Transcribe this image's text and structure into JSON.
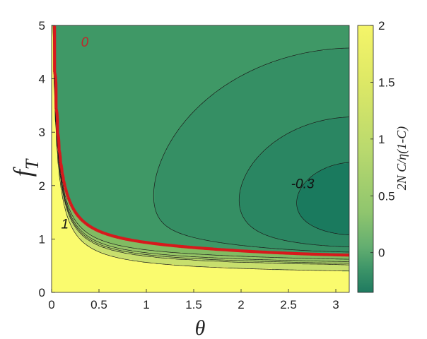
{
  "chart_data": {
    "type": "heatmap",
    "subtype": "filled-contour",
    "xlabel": "θ",
    "ylabel_main": "f",
    "ylabel_sub": "T",
    "xlim": [
      0,
      3.14159
    ],
    "ylim": [
      0,
      5
    ],
    "x_ticks": [
      "0",
      "0.5",
      "1",
      "1.5",
      "2",
      "2.5",
      "3"
    ],
    "x_tick_values": [
      0,
      0.5,
      1,
      1.5,
      2,
      2.5,
      3
    ],
    "y_ticks": [
      "0",
      "1",
      "2",
      "3",
      "4",
      "5"
    ],
    "y_tick_values": [
      0,
      1,
      2,
      3,
      4,
      5
    ],
    "colorbar": {
      "label": "2N C/η(1-C)",
      "range": [
        -0.35,
        2
      ],
      "ticks": [
        "0",
        "0.5",
        "1",
        "1.5",
        "2"
      ],
      "tick_values": [
        0,
        0.5,
        1,
        1.5,
        2
      ],
      "colors": [
        "#1f7a60",
        "#3c9468",
        "#63ae70",
        "#8fc56e",
        "#b9d96e",
        "#dde866",
        "#f5f569"
      ],
      "color_stops": [
        -0.35,
        -0.15,
        0.05,
        0.35,
        0.9,
        1.5,
        2.0
      ]
    },
    "levels": [
      -0.3,
      -0.2,
      -0.1,
      0,
      0.25,
      0.5,
      0.75,
      1,
      1.5
    ],
    "region_colors": [
      "#1a7a5e",
      "#2a8662",
      "#358f64",
      "#3f9866",
      "#82bb62",
      "#95c466",
      "#a6cd69",
      "#b6d66b",
      "#c8df6d",
      "#fafb6e"
    ],
    "zero_contour_color": "#d7191c",
    "contour_labels": [
      {
        "text": "0",
        "x": 0.35,
        "y": 4.6,
        "color": "#c0282a"
      },
      {
        "text": "-0.3",
        "x": 2.65,
        "y": 1.95,
        "color": "#111111"
      },
      {
        "text": "1",
        "x": 0.14,
        "y": 1.2,
        "color": "#111111"
      }
    ]
  }
}
